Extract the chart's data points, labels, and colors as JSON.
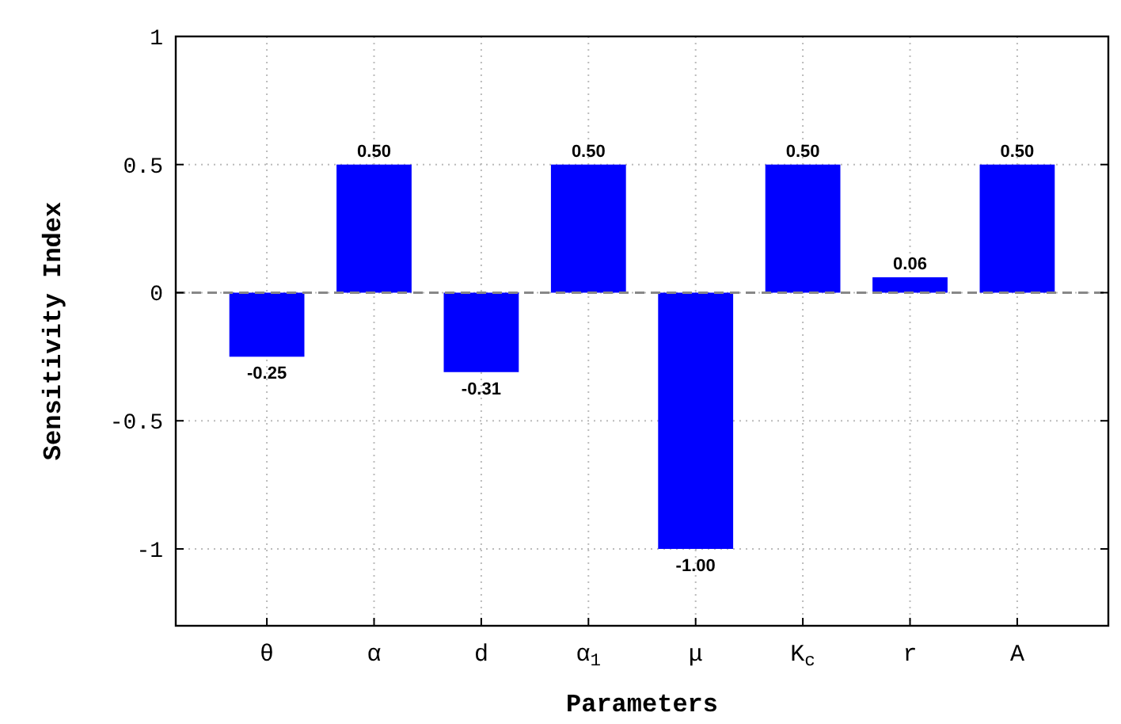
{
  "chart_data": {
    "type": "bar",
    "xlabel": "Parameters",
    "ylabel": "Sensitivity Index",
    "categories": [
      "θ",
      "α",
      "d",
      "α$_{1}$",
      "μ",
      "K$_{c}$",
      "r",
      "A"
    ],
    "values": [
      -0.25,
      0.5,
      -0.31,
      0.5,
      -1.0,
      0.5,
      0.06,
      0.5
    ],
    "value_labels": [
      "-0.25",
      "0.50",
      "-0.31",
      "0.50",
      "-1.00",
      "0.50",
      "0.06",
      "0.50"
    ],
    "color": "#0000ff",
    "ylim": [
      -1.3,
      1
    ],
    "yticks": [
      1,
      0.5,
      0,
      -0.5,
      -1
    ],
    "grid": true,
    "ref_lines": [
      {
        "axis": "y",
        "value": 0,
        "color": "#888888",
        "line_style": "dashed"
      }
    ]
  }
}
